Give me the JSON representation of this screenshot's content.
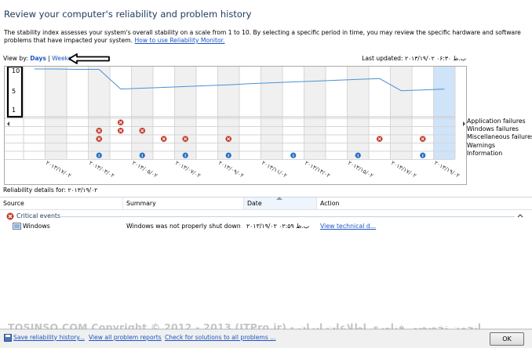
{
  "window": {
    "title": "Review your computer's reliability and problem history",
    "description": "The stability index assesses your system's overall stability on a scale from 1 to 10. By selecting a specific period in time, you may review the specific hardware and software problems that have impacted your system.",
    "help_link": "How to use Reliability Monitor."
  },
  "view_by": {
    "label": "View by:",
    "days": "Days",
    "separator": "|",
    "weeks": "Weeks"
  },
  "last_updated": {
    "label": "Last updated:",
    "value": "۲۰۱۳/۱۹/۰۲ ۰۶:۳۰ ب.ظ"
  },
  "chart_data": {
    "type": "line",
    "y_ticks": [
      "10",
      "5",
      "1"
    ],
    "ylim": [
      1,
      10
    ],
    "row_labels": [
      "Application failures",
      "Windows failures",
      "Miscellaneous failures",
      "Warnings",
      "Information"
    ],
    "x_tick_labels": [
      "۲۰۱۳/۱۷/۰۲",
      "۲۰۱۳/۰۳/۰۲",
      "۲۰۱۳/۰۵/۰۲",
      "۲۰۱۳/۰۷/۰۲",
      "۲۰۱۳/۰۹/۰۲",
      "۲۰۱۳/۱۱/۰۲",
      "۲۰۱۳/۱۳/۰۲",
      "۲۰۱۳/۱۵/۰۲",
      "۲۰۱۳/۱۷/۰۲",
      "۲۰۱۳/۱۹/۰۲"
    ],
    "stability_index": [
      null,
      null,
      null,
      null,
      null,
      null,
      null,
      null,
      null,
      null,
      10,
      10,
      10,
      10,
      9.9,
      9.9,
      5.2,
      5.4,
      5.6,
      5.8,
      6.0,
      6.2,
      6.5,
      6.7,
      6.9,
      7.1,
      7.3,
      7.5,
      7.7,
      4.8,
      5.0,
      5.2
    ],
    "events": {
      "windows_failures": [
        16
      ],
      "misc_failures": [
        15,
        16,
        17
      ],
      "warnings": [
        15,
        18,
        19,
        21,
        28,
        30
      ],
      "information": [
        15,
        17,
        19,
        21,
        24,
        27,
        30
      ]
    },
    "selected_column": 31
  },
  "details": {
    "label": "Reliability details for: ۲۰۱۳/۱۹/۰۲",
    "columns": [
      "Source",
      "Summary",
      "Date",
      "Action"
    ],
    "group": "Critical events",
    "rows": [
      {
        "source": "Windows",
        "summary": "Windows was not properly shut down",
        "date": "۲۰۱۳/۱۹/۰۲ ۰۲:۵۹ ب.ظ",
        "action": "View  technical d..."
      }
    ]
  },
  "footer": {
    "save_link": "Save reliability history...",
    "all_reports_link": "View all problem reports",
    "check_solutions_link": "Check for solutions to all problems ...",
    "ok_label": "OK"
  },
  "watermark": "TOSINSO.COM Copyright © 2012 - 2013 (ITPro.ir) - انجمن تخصصی فناوری اطلاعات ایران",
  "colors": {
    "accent": "#1b54c4",
    "title": "#1e395b",
    "line": "#4a90d9",
    "selected": "#cfe3f9",
    "error": "#c0392b",
    "info": "#2a6fc6",
    "annotation": "#000000"
  }
}
